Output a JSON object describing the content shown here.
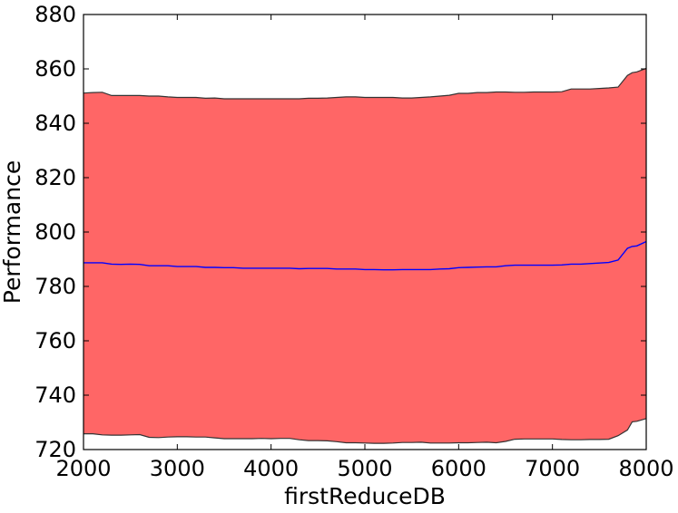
{
  "chart_data": {
    "type": "area",
    "title": "",
    "xlabel": "firstReduceDB",
    "ylabel": "Performance",
    "xlim": [
      2000,
      8000
    ],
    "ylim": [
      720,
      880
    ],
    "xticks": [
      2000,
      3000,
      4000,
      5000,
      6000,
      7000,
      8000
    ],
    "yticks": [
      720,
      740,
      760,
      780,
      800,
      820,
      840,
      860,
      880
    ],
    "grid": false,
    "legend": "none",
    "x": [
      2000,
      2100,
      2200,
      2300,
      2400,
      2500,
      2600,
      2700,
      2800,
      2900,
      3000,
      3100,
      3200,
      3300,
      3400,
      3500,
      3600,
      3700,
      3800,
      3900,
      4000,
      4100,
      4200,
      4300,
      4400,
      4500,
      4600,
      4700,
      4800,
      4900,
      5000,
      5100,
      5200,
      5300,
      5400,
      5500,
      5600,
      5700,
      5800,
      5900,
      6000,
      6100,
      6200,
      6300,
      6400,
      6500,
      6600,
      6700,
      6800,
      6900,
      7000,
      7100,
      7200,
      7300,
      7400,
      7500,
      7600,
      7700,
      7800,
      7850,
      7900,
      8000
    ],
    "series": [
      {
        "name": "",
        "color": "#0000ff",
        "values": [
          788.7,
          788.7,
          788.7,
          788.2,
          788.1,
          788.2,
          788.1,
          787.6,
          787.6,
          787.6,
          787.3,
          787.3,
          787.3,
          787.0,
          787.0,
          786.9,
          786.9,
          786.7,
          786.7,
          786.7,
          786.7,
          786.7,
          786.7,
          786.5,
          786.6,
          786.6,
          786.6,
          786.4,
          786.4,
          786.4,
          786.2,
          786.2,
          786.1,
          786.1,
          786.2,
          786.2,
          786.2,
          786.2,
          786.4,
          786.5,
          786.9,
          787.0,
          787.1,
          787.2,
          787.2,
          787.6,
          787.8,
          787.8,
          787.8,
          787.8,
          787.8,
          787.9,
          788.2,
          788.2,
          788.4,
          788.6,
          788.8,
          789.7,
          794.0,
          794.7,
          794.9,
          796.5
        ]
      }
    ],
    "band": {
      "fill_color": "#ff6666",
      "edge_color": "#333333",
      "upper": [
        851.1,
        851.3,
        851.4,
        850.2,
        850.2,
        850.2,
        850.2,
        850.0,
        850.0,
        849.7,
        849.5,
        849.5,
        849.5,
        849.2,
        849.3,
        849.0,
        849.0,
        849.0,
        849.0,
        849.0,
        849.0,
        849.0,
        849.0,
        849.0,
        849.2,
        849.2,
        849.3,
        849.5,
        849.7,
        849.7,
        849.5,
        849.5,
        849.5,
        849.5,
        849.3,
        849.3,
        849.5,
        849.7,
        850.0,
        850.3,
        851.0,
        851.0,
        851.3,
        851.3,
        851.5,
        851.5,
        851.4,
        851.4,
        851.5,
        851.5,
        851.5,
        851.6,
        852.6,
        852.6,
        852.6,
        852.8,
        853.0,
        853.3,
        857.6,
        858.6,
        858.9,
        860.2
      ],
      "lower": [
        725.8,
        725.8,
        725.4,
        725.3,
        725.3,
        725.4,
        725.5,
        724.5,
        724.4,
        724.6,
        724.7,
        724.7,
        724.6,
        724.6,
        724.3,
        724.0,
        724.0,
        724.0,
        724.0,
        724.1,
        724.0,
        724.1,
        724.1,
        723.6,
        723.3,
        723.3,
        723.2,
        722.9,
        722.5,
        722.5,
        722.4,
        722.3,
        722.3,
        722.4,
        722.6,
        722.6,
        722.7,
        722.4,
        722.4,
        722.4,
        722.5,
        722.5,
        722.6,
        722.7,
        722.5,
        723.0,
        723.8,
        723.9,
        723.9,
        723.9,
        723.9,
        723.7,
        723.6,
        723.6,
        723.7,
        723.7,
        723.8,
        725.1,
        727.2,
        730.2,
        730.4,
        731.4
      ]
    }
  }
}
